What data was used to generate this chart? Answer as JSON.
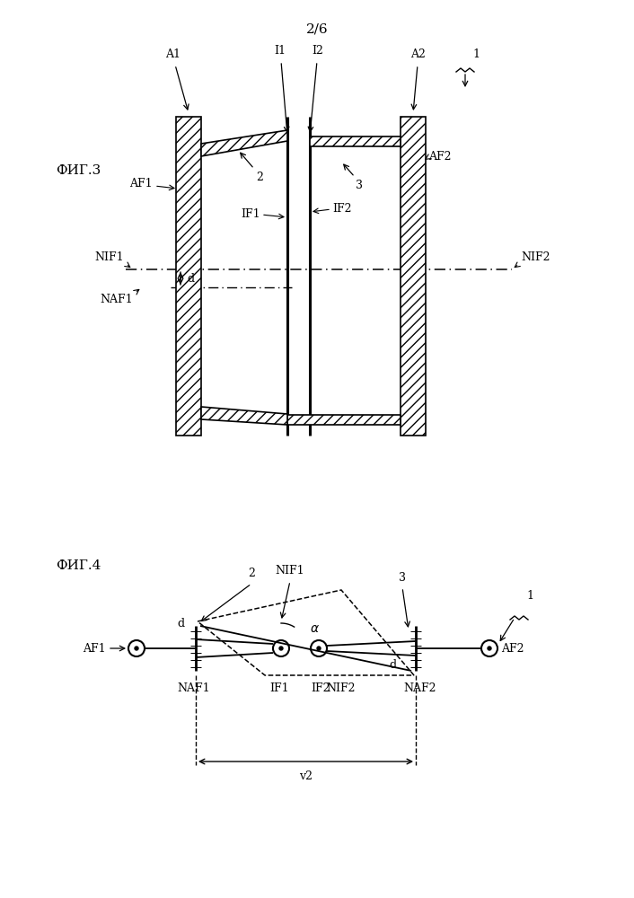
{
  "page_label": "2/6",
  "fig3_label": "ФИГ.3",
  "fig4_label": "ФИГ.4",
  "bg_color": "#ffffff",
  "line_color": "#000000"
}
